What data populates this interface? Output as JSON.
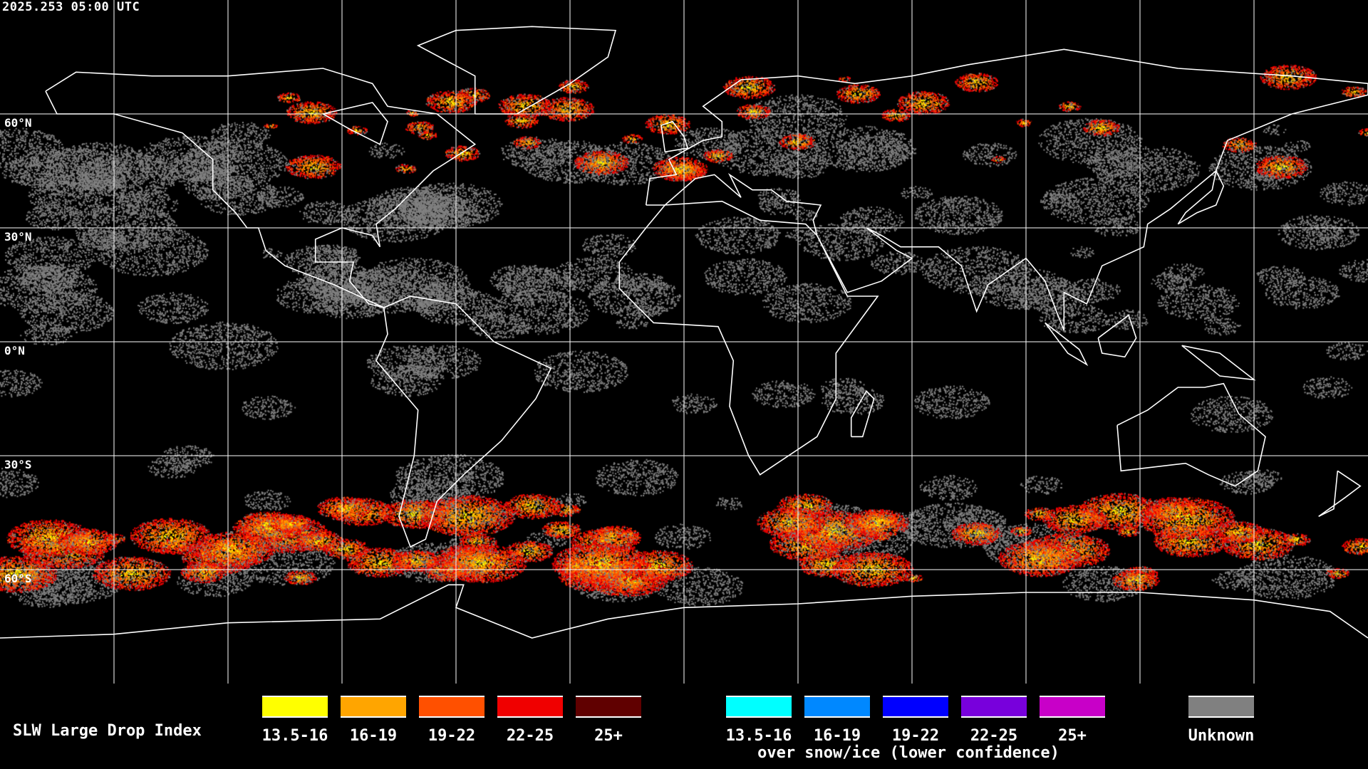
{
  "timestamp": "2025.253 05:00 UTC",
  "map": {
    "projection": "equirectangular",
    "grid_spacing_deg": 30,
    "lat_labels": [
      "60°N",
      "30°N",
      "0°N",
      "30°S",
      "60°S"
    ],
    "background": "#000000",
    "coastline_color": "#ffffff",
    "grid_color": "#ffffff"
  },
  "legend": {
    "title": "SLW Large Drop Index",
    "categories": [
      {
        "label": "13.5-16",
        "color": "#ffff00"
      },
      {
        "label": "16-19",
        "color": "#ffa500"
      },
      {
        "label": "19-22",
        "color": "#ff5000"
      },
      {
        "label": "22-25",
        "color": "#f00000"
      },
      {
        "label": "25+",
        "color": "#600000"
      }
    ],
    "snow_categories": [
      {
        "label": "13.5-16",
        "color": "#00ffff"
      },
      {
        "label": "16-19",
        "color": "#0088ff"
      },
      {
        "label": "19-22",
        "color": "#0000ff"
      },
      {
        "label": "22-25",
        "color": "#7800dc"
      },
      {
        "label": "25+",
        "color": "#c800c8"
      }
    ],
    "snow_note": "over snow/ice (lower confidence)",
    "unknown": {
      "label": "Unknown",
      "color": "#808080"
    }
  }
}
